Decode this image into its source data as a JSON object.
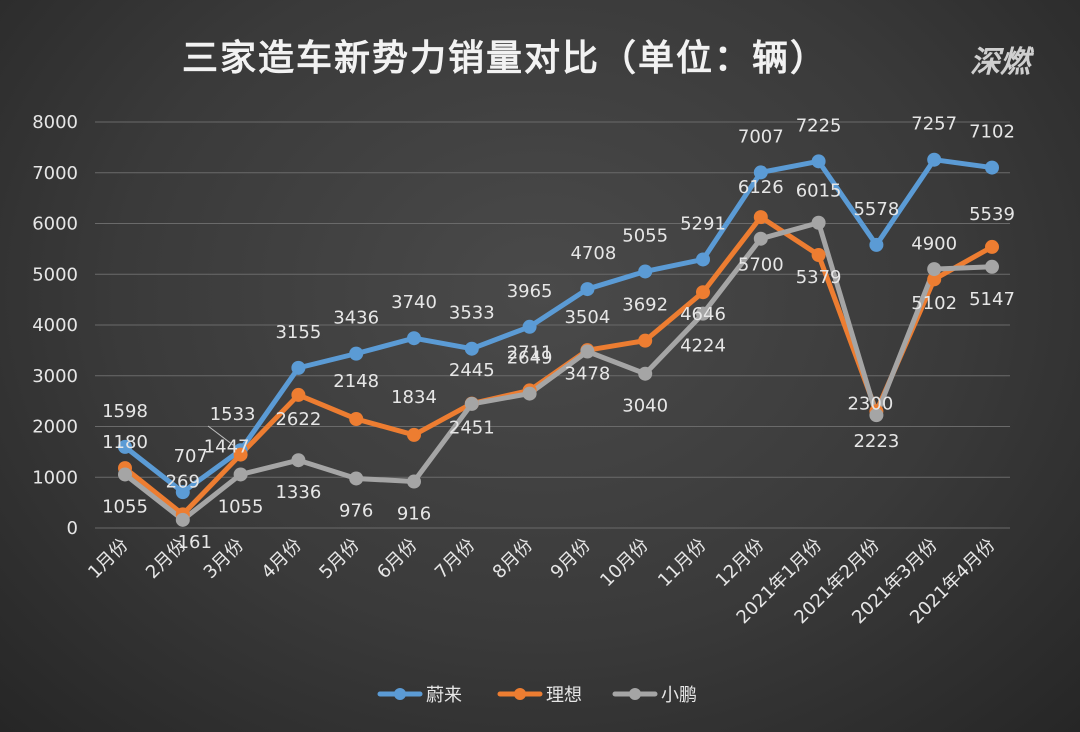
{
  "title": "三家造车新势力销量对比（单位：辆）",
  "logo": "深燃",
  "chart_data": {
    "type": "line",
    "categories": [
      "1月份",
      "2月份",
      "3月份",
      "4月份",
      "5月份",
      "6月份",
      "7月份",
      "8月份",
      "9月份",
      "10月份",
      "11月份",
      "12月份",
      "2021年1月份",
      "2021年2月份",
      "2021年3月份",
      "2021年4月份"
    ],
    "ylim": [
      0,
      8000
    ],
    "yticks": [
      0,
      1000,
      2000,
      3000,
      4000,
      5000,
      6000,
      7000,
      8000
    ],
    "grid": true,
    "legend_position": "bottom",
    "series": [
      {
        "name": "蔚来",
        "color": "#5b9bd5",
        "values": [
          1598,
          707,
          1533,
          3155,
          3436,
          3740,
          3533,
          3965,
          4708,
          5055,
          5291,
          7007,
          7225,
          5578,
          7257,
          7102
        ]
      },
      {
        "name": "理想",
        "color": "#ed7d31",
        "values": [
          1180,
          269,
          1447,
          2622,
          2148,
          1834,
          2451,
          2711,
          3504,
          3692,
          4646,
          6126,
          5379,
          2300,
          4900,
          5539
        ]
      },
      {
        "name": "小鹏",
        "color": "#a5a5a5",
        "values": [
          1055,
          161,
          1055,
          1336,
          976,
          916,
          2445,
          2649,
          3478,
          3040,
          4224,
          5700,
          6015,
          2223,
          5102,
          5147
        ]
      }
    ]
  }
}
